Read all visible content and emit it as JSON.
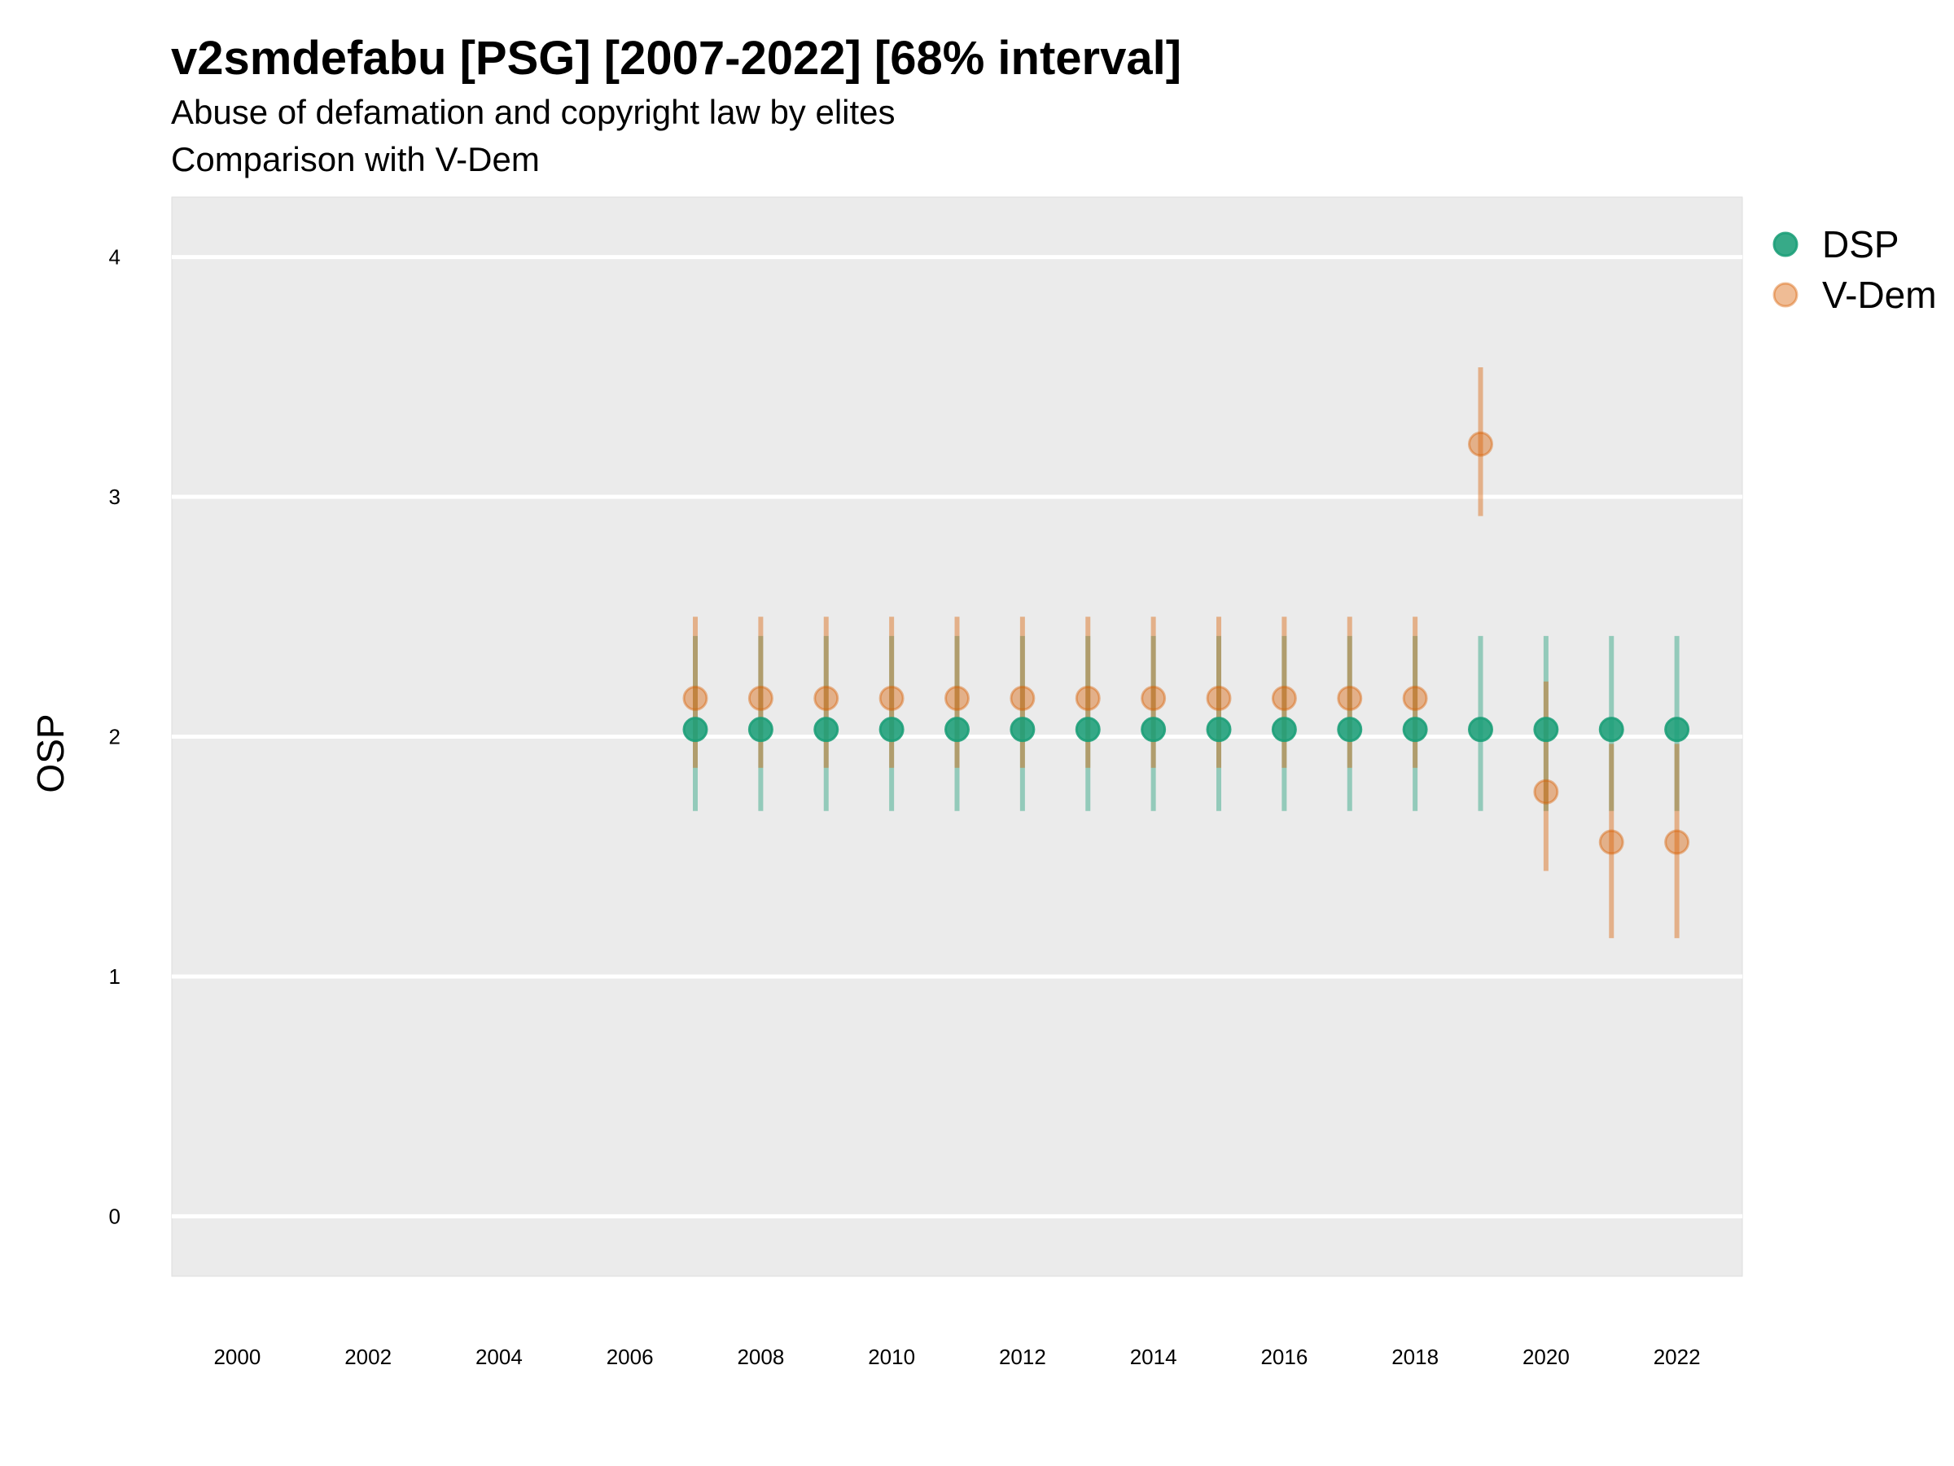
{
  "chart_data": {
    "type": "scatter",
    "title": "v2smdefabu [PSG] [2007-2022] [68% interval]",
    "subtitle": [
      "Abuse of defamation and copyright law by elites",
      "Comparison with V-Dem"
    ],
    "xlabel": "",
    "ylabel": "OSP",
    "xlim": [
      1999,
      2023
    ],
    "ylim": [
      -0.25,
      4.25
    ],
    "x_ticks": [
      2000,
      2002,
      2004,
      2006,
      2008,
      2010,
      2012,
      2014,
      2016,
      2018,
      2020,
      2022
    ],
    "y_ticks": [
      0,
      1,
      2,
      3,
      4
    ],
    "grid": true,
    "legend_position": "right",
    "series": [
      {
        "name": "DSP",
        "color": "#1b9e77",
        "points": [
          {
            "x": 2007,
            "y": 2.03,
            "lo": 1.69,
            "hi": 2.42
          },
          {
            "x": 2008,
            "y": 2.03,
            "lo": 1.69,
            "hi": 2.42
          },
          {
            "x": 2009,
            "y": 2.03,
            "lo": 1.69,
            "hi": 2.42
          },
          {
            "x": 2010,
            "y": 2.03,
            "lo": 1.69,
            "hi": 2.42
          },
          {
            "x": 2011,
            "y": 2.03,
            "lo": 1.69,
            "hi": 2.42
          },
          {
            "x": 2012,
            "y": 2.03,
            "lo": 1.69,
            "hi": 2.42
          },
          {
            "x": 2013,
            "y": 2.03,
            "lo": 1.69,
            "hi": 2.42
          },
          {
            "x": 2014,
            "y": 2.03,
            "lo": 1.69,
            "hi": 2.42
          },
          {
            "x": 2015,
            "y": 2.03,
            "lo": 1.69,
            "hi": 2.42
          },
          {
            "x": 2016,
            "y": 2.03,
            "lo": 1.69,
            "hi": 2.42
          },
          {
            "x": 2017,
            "y": 2.03,
            "lo": 1.69,
            "hi": 2.42
          },
          {
            "x": 2018,
            "y": 2.03,
            "lo": 1.69,
            "hi": 2.42
          },
          {
            "x": 2019,
            "y": 2.03,
            "lo": 1.69,
            "hi": 2.42
          },
          {
            "x": 2020,
            "y": 2.03,
            "lo": 1.69,
            "hi": 2.42
          },
          {
            "x": 2021,
            "y": 2.03,
            "lo": 1.69,
            "hi": 2.42
          },
          {
            "x": 2022,
            "y": 2.03,
            "lo": 1.69,
            "hi": 2.42
          }
        ]
      },
      {
        "name": "V-Dem",
        "color": "#d95f02",
        "points": [
          {
            "x": 2007,
            "y": 2.16,
            "lo": 1.87,
            "hi": 2.5
          },
          {
            "x": 2008,
            "y": 2.16,
            "lo": 1.87,
            "hi": 2.5
          },
          {
            "x": 2009,
            "y": 2.16,
            "lo": 1.87,
            "hi": 2.5
          },
          {
            "x": 2010,
            "y": 2.16,
            "lo": 1.87,
            "hi": 2.5
          },
          {
            "x": 2011,
            "y": 2.16,
            "lo": 1.87,
            "hi": 2.5
          },
          {
            "x": 2012,
            "y": 2.16,
            "lo": 1.87,
            "hi": 2.5
          },
          {
            "x": 2013,
            "y": 2.16,
            "lo": 1.87,
            "hi": 2.5
          },
          {
            "x": 2014,
            "y": 2.16,
            "lo": 1.87,
            "hi": 2.5
          },
          {
            "x": 2015,
            "y": 2.16,
            "lo": 1.87,
            "hi": 2.5
          },
          {
            "x": 2016,
            "y": 2.16,
            "lo": 1.87,
            "hi": 2.5
          },
          {
            "x": 2017,
            "y": 2.16,
            "lo": 1.87,
            "hi": 2.5
          },
          {
            "x": 2018,
            "y": 2.16,
            "lo": 1.87,
            "hi": 2.5
          },
          {
            "x": 2019,
            "y": 3.22,
            "lo": 2.92,
            "hi": 3.54
          },
          {
            "x": 2020,
            "y": 1.77,
            "lo": 1.44,
            "hi": 2.23
          },
          {
            "x": 2021,
            "y": 1.56,
            "lo": 1.16,
            "hi": 1.97
          },
          {
            "x": 2022,
            "y": 1.56,
            "lo": 1.16,
            "hi": 1.97
          }
        ]
      }
    ]
  }
}
